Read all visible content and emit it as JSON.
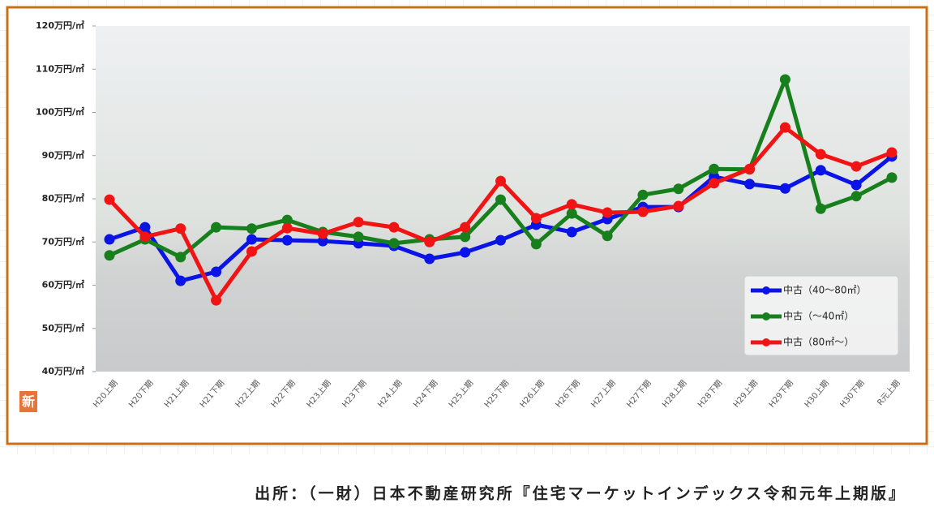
{
  "chart_data": {
    "type": "line",
    "categories": [
      "H20上期",
      "H20下期",
      "H21上期",
      "H21下期",
      "H22上期",
      "H22下期",
      "H23上期",
      "H23下期",
      "H24上期",
      "H24下期",
      "H25上期",
      "H25下期",
      "H26上期",
      "H26下期",
      "H27上期",
      "H27下期",
      "H28上期",
      "H28下期",
      "H29上期",
      "H29下期",
      "H30上期",
      "H30下期",
      "R元上期"
    ],
    "series": [
      {
        "name": "中古（40～80㎡）",
        "color": "#0a14e6",
        "values": [
          70.6,
          73.4,
          61.0,
          63.1,
          70.6,
          70.4,
          70.2,
          69.7,
          69.1,
          66.1,
          67.6,
          70.4,
          74.0,
          72.3,
          75.3,
          78.1,
          78.1,
          85.1,
          83.4,
          82.4,
          86.6,
          83.2,
          89.8
        ]
      },
      {
        "name": "中古（～40㎡）",
        "color": "#17801c",
        "values": [
          66.9,
          70.6,
          66.5,
          73.4,
          73.1,
          75.1,
          72.3,
          71.2,
          69.7,
          70.6,
          71.2,
          79.8,
          69.5,
          76.6,
          71.4,
          80.9,
          82.3,
          86.9,
          86.8,
          107.6,
          77.7,
          80.6,
          84.9
        ]
      },
      {
        "name": "中古（80㎡～）",
        "color": "#f01414",
        "values": [
          79.8,
          71.2,
          73.1,
          56.5,
          67.8,
          73.2,
          71.9,
          74.6,
          73.4,
          70.0,
          73.4,
          84.1,
          75.5,
          78.7,
          76.8,
          77.0,
          78.3,
          83.6,
          86.9,
          96.5,
          90.3,
          87.5,
          90.7
        ]
      }
    ],
    "ylim": [
      40,
      120
    ],
    "yticks": [
      {
        "value": 40,
        "label": "40万円/㎡"
      },
      {
        "value": 50,
        "label": "50万円/㎡"
      },
      {
        "value": 60,
        "label": "60万円/㎡"
      },
      {
        "value": 70,
        "label": "70万円/㎡"
      },
      {
        "value": 80,
        "label": "80万円/㎡"
      },
      {
        "value": 90,
        "label": "90万円/㎡"
      },
      {
        "value": 100,
        "label": "100万円/㎡"
      },
      {
        "value": 110,
        "label": "110万円/㎡"
      },
      {
        "value": 120,
        "label": "120万円/㎡"
      }
    ],
    "legend": "lower right",
    "badge": "新",
    "source": "出所：（一財）日本不動産研究所『住宅マーケットインデックス令和元年上期版』"
  }
}
